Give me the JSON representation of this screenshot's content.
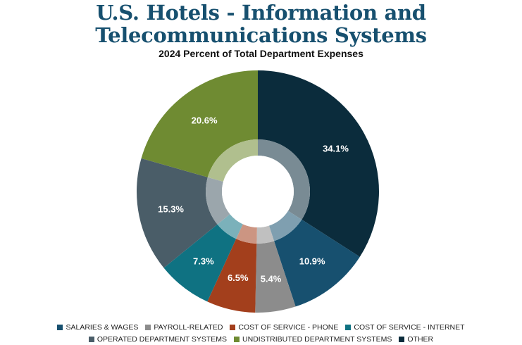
{
  "title_line1": "U.S. Hotels - Information and",
  "title_line2": "Telecommunications Systems",
  "subtitle": "2024 Percent of Total Department Expenses",
  "chart_data": {
    "type": "pie",
    "variant": "donut",
    "title": "U.S. Hotels - Information and Telecommunications Systems",
    "subtitle": "2024 Percent of Total Department Expenses",
    "legend_position": "bottom",
    "slices": [
      {
        "name": "OTHER",
        "value": 34.1,
        "label": "34.1%",
        "color": "#0b2c3c"
      },
      {
        "name": "SALARIES & WAGES",
        "value": 10.9,
        "label": "10.9%",
        "color": "#17506f"
      },
      {
        "name": "PAYROLL-RELATED",
        "value": 5.4,
        "label": "5.4%",
        "color": "#8c8c8c"
      },
      {
        "name": "COST OF SERVICE - PHONE",
        "value": 6.5,
        "label": "6.5%",
        "color": "#a33f1c"
      },
      {
        "name": "COST OF SERVICE - INTERNET",
        "value": 7.3,
        "label": "7.3%",
        "color": "#0f7282"
      },
      {
        "name": "OPERATED DEPARTMENT SYSTEMS",
        "value": 15.3,
        "label": "15.3%",
        "color": "#4a5d68"
      },
      {
        "name": "UNDISTRIBUTED DEPARTMENT SYSTEMS",
        "value": 20.6,
        "label": "20.6%",
        "color": "#6f8b32"
      }
    ]
  },
  "legend": {
    "row1": [
      {
        "label": "SALARIES & WAGES",
        "color": "#17506f"
      },
      {
        "label": "PAYROLL-RELATED",
        "color": "#8c8c8c"
      },
      {
        "label": "COST OF SERVICE - PHONE",
        "color": "#a33f1c"
      },
      {
        "label": "COST OF SERVICE - INTERNET",
        "color": "#0f7282"
      }
    ],
    "row2": [
      {
        "label": "OPERATED DEPARTMENT SYSTEMS",
        "color": "#4a5d68"
      },
      {
        "label": "UNDISTRIBUTED DEPARTMENT SYSTEMS",
        "color": "#6f8b32"
      },
      {
        "label": "OTHER",
        "color": "#0b2c3c"
      }
    ]
  }
}
